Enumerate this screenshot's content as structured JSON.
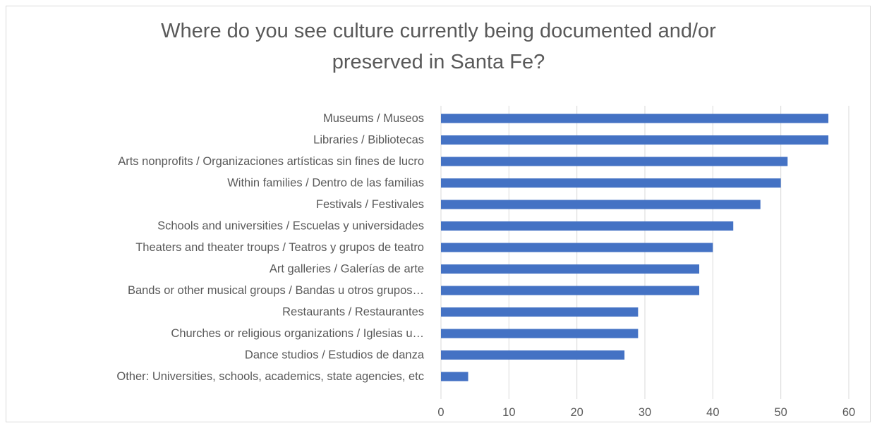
{
  "chart_data": {
    "type": "bar",
    "orientation": "horizontal",
    "title": "Where do you see culture currently being documented and/or\npreserved in Santa Fe?",
    "xlabel": "",
    "ylabel": "",
    "xlim": [
      0,
      60
    ],
    "xticks": [
      0,
      10,
      20,
      30,
      40,
      50,
      60
    ],
    "grid": "vertical",
    "legend": "none",
    "bar_color": "#4472C4",
    "categories": [
      "Museums / Museos",
      "Libraries / Bibliotecas",
      "Arts nonprofits / Organizaciones artísticas sin fines de lucro",
      "Within families / Dentro de las familias",
      "Festivals / Festivales",
      "Schools and universities / Escuelas y universidades",
      "Theaters and theater troups / Teatros y grupos de teatro",
      "Art galleries / Galerías de arte",
      "Bands or other musical groups / Bandas u otros grupos…",
      "Restaurants / Restaurantes",
      "Churches or religious organizations / Iglesias u…",
      "Dance studios / Estudios de danza",
      "Other: Universities, schools, academics, state agencies, etc"
    ],
    "values": [
      57,
      57,
      51,
      50,
      47,
      43,
      40,
      38,
      38,
      29,
      29,
      27,
      4
    ]
  }
}
